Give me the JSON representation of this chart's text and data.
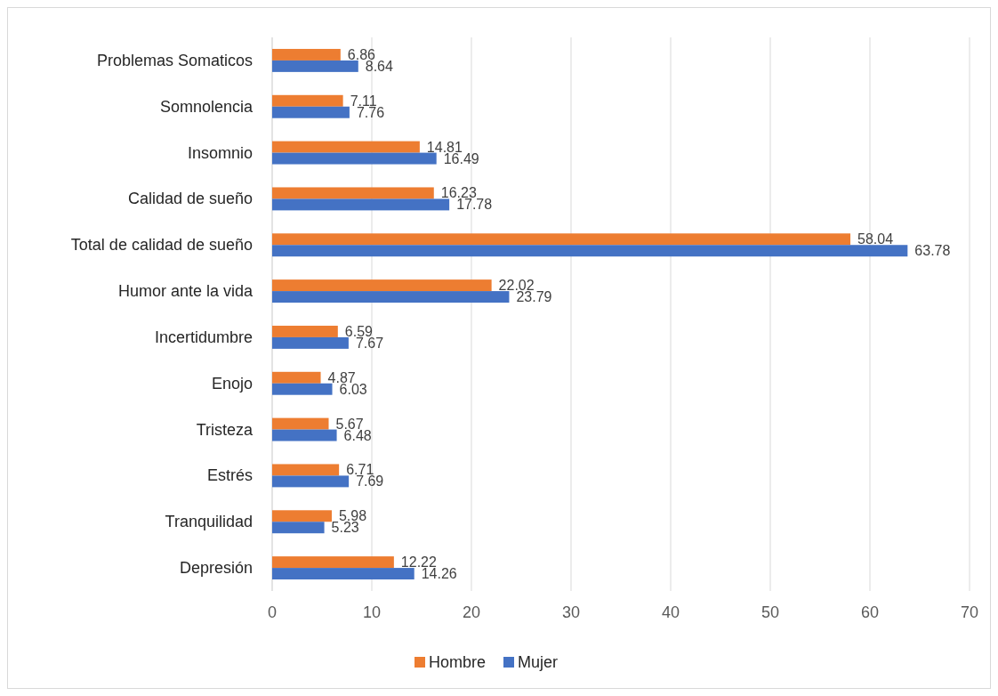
{
  "chart_data": {
    "type": "bar",
    "orientation": "horizontal",
    "categories": [
      "Problemas Somaticos",
      "Somnolencia",
      "Insomnio",
      "Calidad de sueño",
      "Total de calidad de sueño",
      "Humor ante la vida",
      "Incertidumbre",
      "Enojo",
      "Tristeza",
      "Estrés",
      "Tranquilidad",
      "Depresión"
    ],
    "series": [
      {
        "name": "Hombre",
        "color": "#ed7d31",
        "values": [
          6.86,
          7.11,
          14.81,
          16.23,
          58.04,
          22.02,
          6.59,
          4.87,
          5.67,
          6.71,
          5.98,
          12.22
        ]
      },
      {
        "name": "Mujer",
        "color": "#4472c4",
        "values": [
          8.64,
          7.76,
          16.49,
          17.78,
          63.78,
          23.79,
          7.67,
          6.03,
          6.48,
          7.69,
          5.23,
          14.26
        ]
      }
    ],
    "xlim": [
      0,
      70
    ],
    "xticks": [
      0,
      10,
      20,
      30,
      40,
      50,
      60,
      70
    ],
    "grid": "x",
    "legend": "bottom",
    "data_labels": true
  }
}
